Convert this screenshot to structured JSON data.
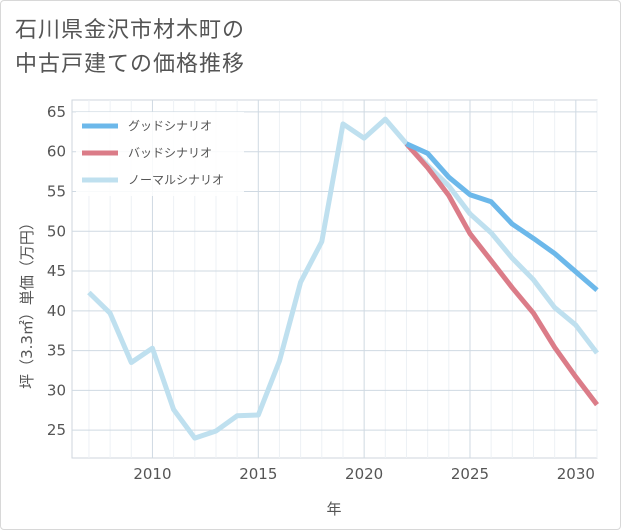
{
  "title_lines": [
    "石川県金沢市材木町の",
    "中古戸建ての価格推移"
  ],
  "chart_data": {
    "type": "line",
    "xlabel": "年",
    "ylabel": "坪（3.3㎡）単価（万円）",
    "xlim": [
      2006.2,
      2031
    ],
    "ylim": [
      21.5,
      66.5
    ],
    "xticks": [
      2010,
      2015,
      2020,
      2025,
      2030
    ],
    "yticks": [
      25,
      30,
      35,
      40,
      45,
      50,
      55,
      60,
      65
    ],
    "grid": true,
    "legend_position": "top-left",
    "series": [
      {
        "name": "グッドシナリオ",
        "color": "#6cb8ea",
        "x": [
          2022,
          2023,
          2024,
          2025,
          2026,
          2027,
          2028,
          2029,
          2030,
          2031
        ],
        "y": [
          61.0,
          59.8,
          56.8,
          54.6,
          53.7,
          50.9,
          49.1,
          47.2,
          44.9,
          42.6
        ]
      },
      {
        "name": "バッドシナリオ",
        "color": "#db7c88",
        "x": [
          2022,
          2023,
          2024,
          2025,
          2026,
          2027,
          2028,
          2029,
          2030,
          2031
        ],
        "y": [
          61.0,
          58.0,
          54.5,
          49.7,
          46.3,
          42.9,
          39.7,
          35.4,
          31.7,
          28.2
        ]
      },
      {
        "name": "ノーマルシナリオ",
        "color": "#bfe0ef",
        "x": [
          2007,
          2008,
          2009,
          2010,
          2011,
          2012,
          2013,
          2014,
          2015,
          2016,
          2017,
          2018,
          2019,
          2020,
          2021,
          2022,
          2023,
          2024,
          2025,
          2026,
          2027,
          2028,
          2029,
          2030,
          2031
        ],
        "y": [
          42.3,
          39.7,
          33.5,
          35.3,
          27.6,
          24.0,
          24.9,
          26.8,
          26.9,
          33.7,
          43.6,
          48.7,
          63.5,
          61.7,
          64.1,
          61.0,
          58.3,
          55.7,
          52.2,
          49.8,
          46.6,
          43.9,
          40.4,
          38.2,
          34.7
        ]
      }
    ]
  }
}
